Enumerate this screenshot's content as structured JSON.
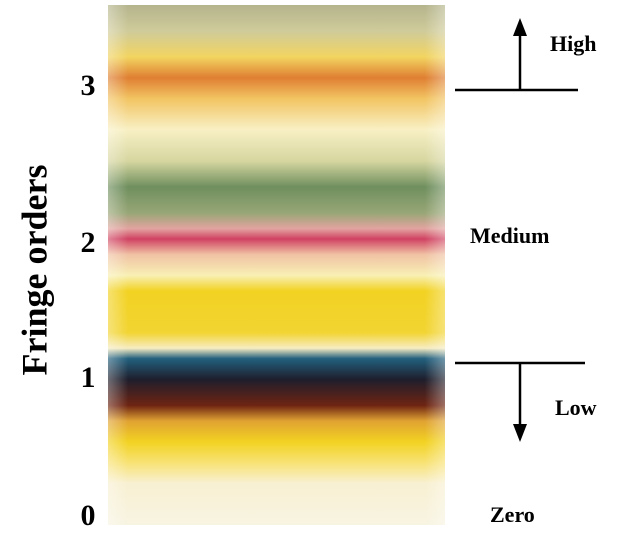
{
  "axis": {
    "label": "Fringe orders",
    "ticks": [
      0,
      1,
      2,
      3
    ]
  },
  "levels": {
    "high": "High",
    "medium": "Medium",
    "low": "Low",
    "zero": "Zero"
  }
}
